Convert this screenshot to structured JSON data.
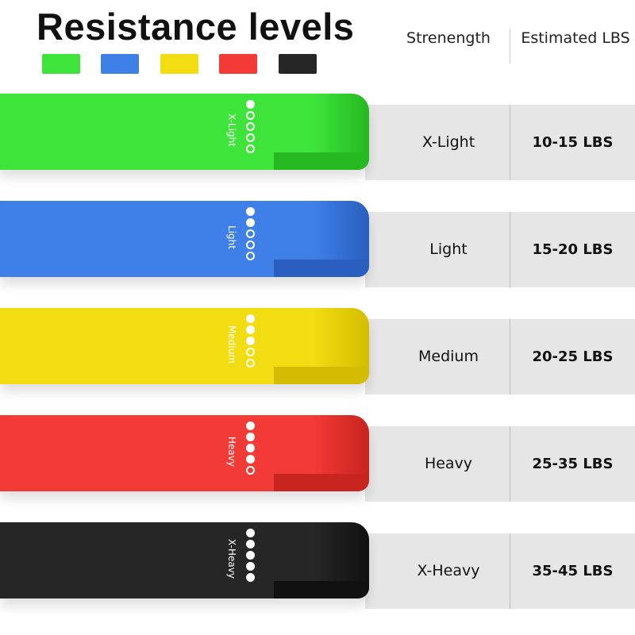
{
  "title": "Resistance levels",
  "headers": {
    "strength": "Strenength",
    "lbs": "Estimated LBS"
  },
  "bands": [
    {
      "label": "X-Light",
      "strength": "X-Light",
      "lbs": "10-15 LBS",
      "level": 1,
      "color": "#3ee43a",
      "dark": "#25b821"
    },
    {
      "label": "Light",
      "strength": "Light",
      "lbs": "15-20 LBS",
      "level": 2,
      "color": "#3f7fe8",
      "dark": "#2a5fc0"
    },
    {
      "label": "Medium",
      "strength": "Medium",
      "lbs": "20-25 LBS",
      "level": 3,
      "color": "#f2dc12",
      "dark": "#d4bd00"
    },
    {
      "label": "Heavy",
      "strength": "Heavy",
      "lbs": "25-35 LBS",
      "level": 4,
      "color": "#f23a36",
      "dark": "#c82420"
    },
    {
      "label": "X-Heavy",
      "strength": "X-Heavy",
      "lbs": "35-45 LBS",
      "level": 5,
      "color": "#262626",
      "dark": "#111111"
    }
  ]
}
